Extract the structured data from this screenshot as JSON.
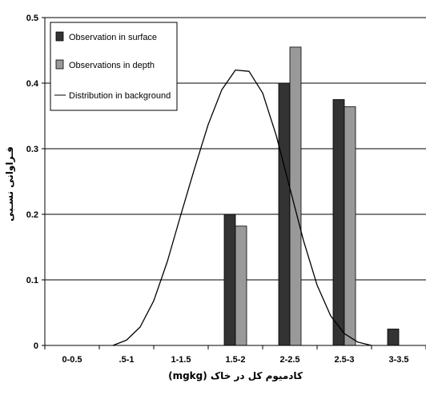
{
  "chart_data": {
    "type": "bar",
    "categories": [
      "0-0.5",
      ".5-1",
      "1-1.5",
      "1.5-2",
      "2-2.5",
      "2.5-3",
      "3-3.5"
    ],
    "series": [
      {
        "name": "Observation in surface",
        "type": "bar",
        "color": "#333333",
        "values": [
          0,
          0,
          0,
          0.2,
          0.4,
          0.375,
          0.025
        ]
      },
      {
        "name": "Observations in depth",
        "type": "bar",
        "color": "#999999",
        "values": [
          0,
          0,
          0,
          0.182,
          0.455,
          0.364,
          0
        ]
      },
      {
        "name": "Distribution in background",
        "type": "line",
        "color": "#000000",
        "x": [
          1.25,
          1.5,
          1.75,
          2.0,
          2.25,
          2.5,
          2.75,
          3.0,
          3.25,
          3.5,
          3.75,
          4.0,
          4.25,
          4.5,
          4.75,
          5.0,
          5.25,
          5.5,
          5.75,
          6.0
        ],
        "values": [
          0.0,
          0.008,
          0.028,
          0.068,
          0.128,
          0.2,
          0.27,
          0.337,
          0.39,
          0.42,
          0.418,
          0.385,
          0.32,
          0.24,
          0.16,
          0.092,
          0.045,
          0.018,
          0.005,
          0.0
        ]
      }
    ],
    "title": "",
    "xlabel": "کادمیوم کل در خاک (mgkg)",
    "ylabel": "فـراوانی نسـبی",
    "ylim": [
      0,
      0.5
    ],
    "yticks": [
      0,
      0.1,
      0.2,
      0.3,
      0.4,
      0.5
    ],
    "ytick_labels": [
      "0",
      "0.1",
      "0.2",
      "0.3",
      "0.4",
      "0.5"
    ],
    "grid": "horizontal",
    "legend_position": "top-left"
  }
}
